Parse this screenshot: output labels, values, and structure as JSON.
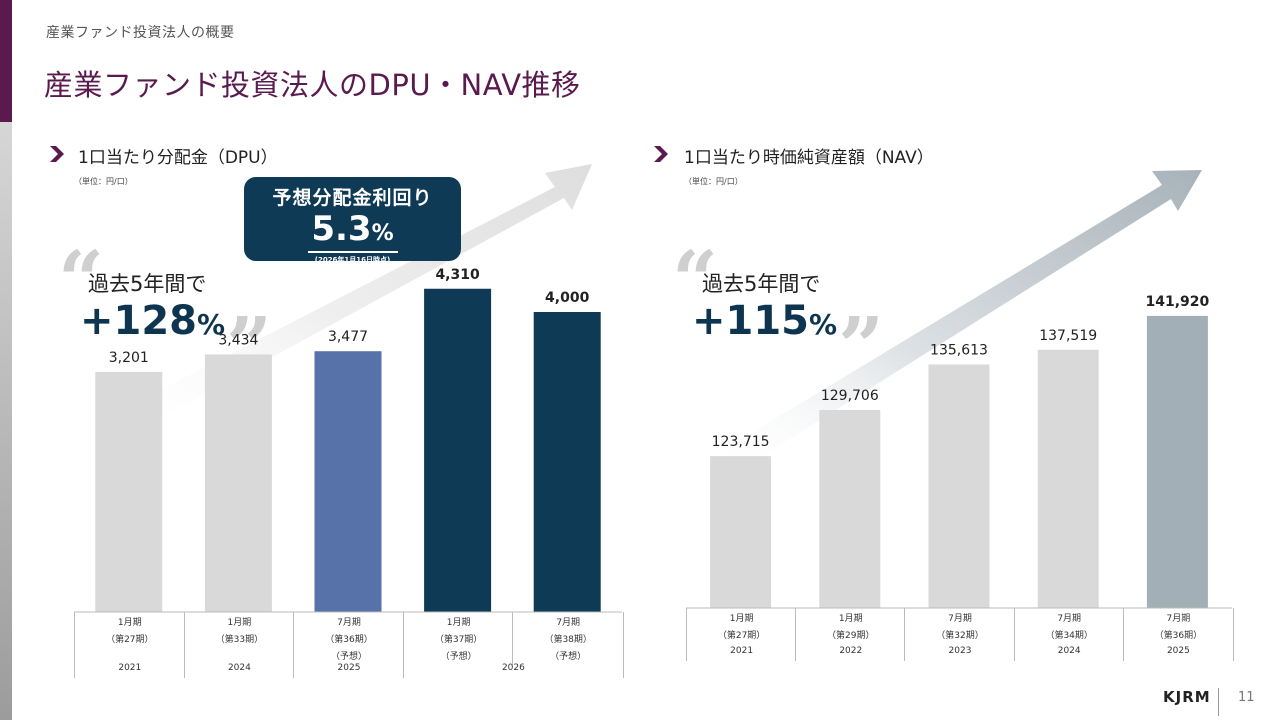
{
  "header": {
    "section": "産業ファンド投資法人の概要",
    "title": "産業ファンド投資法人のDPU・NAV推移"
  },
  "colors": {
    "brand_purple": "#5a1a4e",
    "navy": "#0f3a55",
    "blue": "#5672a8",
    "light_grey_bar": "#d9d9d9",
    "slate_bar": "#a2afb7"
  },
  "dpu": {
    "title": "1口当たり分配金（DPU）",
    "unit": "（単位：円/口）",
    "growth_label": "過去5年間で",
    "growth_value": "+128",
    "growth_pct": "%",
    "yield": {
      "title": "予想分配金利回り",
      "value": "5.3",
      "pct": "%",
      "date": "(2026年1月16日時点)"
    },
    "columns": [
      {
        "period": "1月期",
        "fiscal": "（第27期）",
        "note": ""
      },
      {
        "period": "1月期",
        "fiscal": "（第33期）",
        "note": ""
      },
      {
        "period": "7月期",
        "fiscal": "（第36期）",
        "note": "（予想）"
      },
      {
        "period": "1月期",
        "fiscal": "（第37期）",
        "note": "（予想）"
      },
      {
        "period": "7月期",
        "fiscal": "（第38期）",
        "note": "（予想）"
      }
    ],
    "years": [
      "2021",
      "2024",
      "2025",
      "2026"
    ]
  },
  "nav": {
    "title": "1口当たり時価純資産額（NAV）",
    "unit": "（単位：円/口）",
    "growth_label": "過去5年間で",
    "growth_value": "+115",
    "growth_pct": "%",
    "columns": [
      {
        "period": "1月期",
        "fiscal": "（第27期）",
        "year": "2021"
      },
      {
        "period": "1月期",
        "fiscal": "（第29期）",
        "year": "2022"
      },
      {
        "period": "7月期",
        "fiscal": "（第32期）",
        "year": "2023"
      },
      {
        "period": "7月期",
        "fiscal": "（第34期）",
        "year": "2024"
      },
      {
        "period": "7月期",
        "fiscal": "（第36期）",
        "year": "2025"
      }
    ]
  },
  "footer": {
    "logo": "KJRM",
    "page": "11"
  },
  "chart_data": [
    {
      "type": "bar",
      "title": "1口当たり分配金（DPU）",
      "ylabel": "円/口",
      "categories": [
        "2021 1月期（第27期）",
        "2024 1月期（第33期）",
        "2025 7月期（第36期）（予想）",
        "2026 1月期（第37期）（予想）",
        "2026 7月期（第38期）（予想）"
      ],
      "values": [
        3201,
        3434,
        3477,
        4310,
        4000
      ],
      "labels": [
        "3,201",
        "3,434",
        "3,477",
        "4,310",
        "4,000"
      ],
      "bar_colors": [
        "#d9d9d9",
        "#d9d9d9",
        "#5672a8",
        "#0f3a55",
        "#0f3a55"
      ],
      "bold_labels": [
        false,
        false,
        false,
        true,
        true
      ],
      "ylim": [
        0,
        4600
      ]
    },
    {
      "type": "bar",
      "title": "1口当たり時価純資産額（NAV）",
      "ylabel": "円/口",
      "categories": [
        "2021 1月期（第27期）",
        "2022 1月期（第29期）",
        "2023 7月期（第32期）",
        "2024 7月期（第34期）",
        "2025 7月期（第36期）"
      ],
      "values": [
        123715,
        129706,
        135613,
        137519,
        141920
      ],
      "labels": [
        "123,715",
        "129,706",
        "135,613",
        "137,519",
        "141,920"
      ],
      "bar_colors": [
        "#d9d9d9",
        "#d9d9d9",
        "#d9d9d9",
        "#d9d9d9",
        "#a2afb7"
      ],
      "bold_labels": [
        false,
        false,
        false,
        false,
        true
      ],
      "ylim": [
        104000,
        144500
      ]
    }
  ]
}
